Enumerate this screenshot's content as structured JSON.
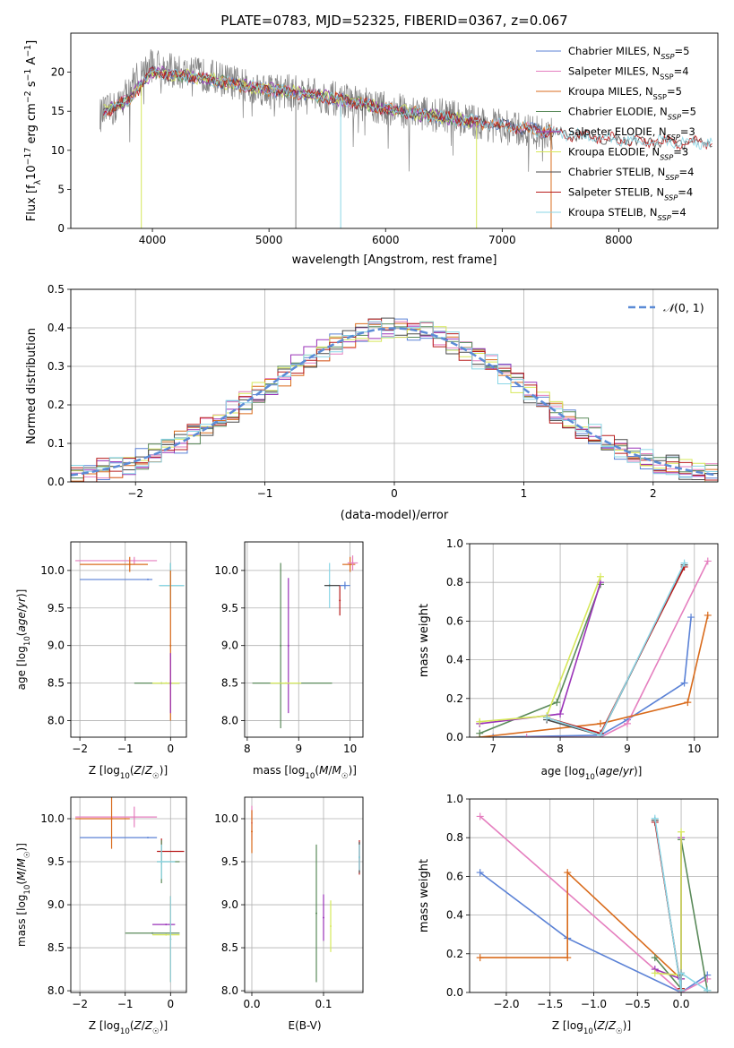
{
  "figure": {
    "title": "PLATE=0783, MJD=52325, FIBERID=0367, z=0.067"
  },
  "colors": {
    "data": "#808080",
    "chabrier_miles": "#5b82d6",
    "salpeter_miles": "#e57fbf",
    "kroupa_miles": "#d96b1c",
    "chabrier_elodie": "#5a8a5a",
    "salpeter_elodie": "#9a32b8",
    "kroupa_elodie": "#d6e85a",
    "chabrier_stelib": "#4a4a4a",
    "salpeter_stelib": "#b81c1c",
    "kroupa_stelib": "#8ad6e6",
    "gaussian": "#5b8bd6",
    "grid": "#b0b0b0"
  },
  "chart_data": [
    {
      "id": "spectrum",
      "type": "line",
      "title": "PLATE=0783, MJD=52325, FIBERID=0367, z=0.067",
      "xlabel": "wavelength [Angstrom, rest frame]",
      "ylabel": "Flux [f_λ 10^-17 erg cm^-2 s^-1 A^-1]",
      "xlim": [
        3300,
        8850
      ],
      "ylim": [
        0,
        25
      ],
      "xticks": [
        4000,
        5000,
        6000,
        7000,
        8000
      ],
      "yticks": [
        0,
        5,
        10,
        15,
        20
      ],
      "grid": false,
      "legend_position": "top-right",
      "data_anchors": [
        [
          3550,
          14.5
        ],
        [
          3700,
          15.5
        ],
        [
          3850,
          19
        ],
        [
          4000,
          21
        ],
        [
          4200,
          20
        ],
        [
          4500,
          19.5
        ],
        [
          4800,
          18.2
        ],
        [
          5000,
          17.8
        ],
        [
          5300,
          17.3
        ],
        [
          5600,
          16.5
        ],
        [
          6000,
          15.3
        ],
        [
          6300,
          14.8
        ],
        [
          6600,
          14.2
        ],
        [
          6800,
          13.5
        ],
        [
          7000,
          13
        ],
        [
          7200,
          12.5
        ],
        [
          7400,
          12
        ]
      ],
      "model_anchors": [
        [
          3600,
          15
        ],
        [
          3800,
          16.5
        ],
        [
          4000,
          20
        ],
        [
          4300,
          19.5
        ],
        [
          4700,
          18.5
        ],
        [
          5000,
          17.8
        ],
        [
          5500,
          16.8
        ],
        [
          6000,
          15.3
        ],
        [
          6500,
          14.2
        ],
        [
          7000,
          13.2
        ],
        [
          7500,
          12.2
        ],
        [
          8000,
          11.3
        ],
        [
          8500,
          11
        ],
        [
          8800,
          11
        ]
      ],
      "series": [
        {
          "name": "Chabrier MILES, N_SSP=5",
          "color": "#5b82d6",
          "xmax": 7450
        },
        {
          "name": "Salpeter MILES, N_SSP=4",
          "color": "#e57fbf",
          "xmax": 7450
        },
        {
          "name": "Kroupa MILES, N_SSP=5",
          "color": "#d96b1c",
          "xmax": 7450
        },
        {
          "name": "Chabrier ELODIE, N_SSP=5",
          "color": "#5a8a5a",
          "xmax": 6800
        },
        {
          "name": "Salpeter ELODIE, N_SSP=3",
          "color": "#9a32b8",
          "xmax": 6800
        },
        {
          "name": "Kroupa ELODIE, N_SSP=3",
          "color": "#d6e85a",
          "xmax": 6800
        },
        {
          "name": "Chabrier STELIB, N_SSP=4",
          "color": "#4a4a4a",
          "xmax": 8800
        },
        {
          "name": "Salpeter STELIB, N_SSP=4",
          "color": "#b81c1c",
          "xmax": 8800
        },
        {
          "name": "Kroupa STELIB, N_SSP=4",
          "color": "#8ad6e6",
          "xmax": 8800
        }
      ],
      "dips": [
        {
          "x": 3905,
          "y": 0,
          "color": "#d6e85a"
        },
        {
          "x": 5230,
          "y": 0,
          "color": "#808080"
        },
        {
          "x": 5615,
          "y": 0,
          "color": "#8ad6e6"
        },
        {
          "x": 6780,
          "y": 0,
          "color": "#d6e85a"
        },
        {
          "x": 7420,
          "y": 0,
          "color": "#d96b1c"
        }
      ]
    },
    {
      "id": "residuals",
      "type": "step",
      "xlabel": "(data-model)/error",
      "ylabel": "Normed distribution",
      "xlim": [
        -2.5,
        2.5
      ],
      "ylim": [
        0,
        0.5
      ],
      "xticks": [
        -2,
        -1,
        0,
        1,
        2
      ],
      "yticks": [
        0.0,
        0.1,
        0.2,
        0.3,
        0.4,
        0.5
      ],
      "grid": true,
      "legend_position": "top-right",
      "gaussian_label": "𝒩(0, 1)",
      "bin_width": 0.1
    },
    {
      "id": "age-vs-Z",
      "type": "errorbar",
      "xlabel": "Z [log10(Z/Z☉)]",
      "ylabel": "age [log10(age/yr)]",
      "xlim": [
        -2.2,
        0.35
      ],
      "ylim": [
        7.78,
        10.38
      ],
      "xticks": [
        -2,
        -1,
        0
      ],
      "yticks": [
        8.0,
        8.5,
        9.0,
        9.5,
        10.0
      ],
      "grid": true,
      "points": [
        {
          "x": -0.5,
          "y": 9.88,
          "xerr": [
            1.5,
            0.1
          ],
          "yerr": 0,
          "color": "#5b82d6"
        },
        {
          "x": -0.8,
          "y": 10.13,
          "xerr": [
            1.3,
            0.5
          ],
          "yerr": 0.05,
          "color": "#e57fbf"
        },
        {
          "x": -0.9,
          "y": 10.08,
          "xerr": [
            1.1,
            0.4
          ],
          "yerr": 0.1,
          "color": "#d96b1c"
        },
        {
          "x": 0.0,
          "y": 9.8,
          "xerr": [
            0.25,
            0.3
          ],
          "yerr": 0.3,
          "color": "#5a8a5a"
        },
        {
          "x": 0.0,
          "y": 9.8,
          "xerr": [
            0.25,
            0.3
          ],
          "yerr": 0.3,
          "color": "#8ad6e6"
        },
        {
          "x": 0.0,
          "y": 9.0,
          "xerr": [
            0,
            0
          ],
          "yerr": 1.0,
          "color": "#d96b1c"
        },
        {
          "x": -0.2,
          "y": 8.5,
          "xerr": [
            0.6,
            0.4
          ],
          "yerr": 0,
          "color": "#5a8a5a"
        },
        {
          "x": -0.1,
          "y": 8.5,
          "xerr": [
            0.3,
            0.3
          ],
          "yerr": 0,
          "color": "#d6e85a"
        },
        {
          "x": 0.0,
          "y": 8.5,
          "xerr": [
            0,
            0
          ],
          "yerr": 0.4,
          "color": "#9a32b8"
        }
      ]
    },
    {
      "id": "age-vs-mass",
      "type": "errorbar",
      "xlabel": "mass [log10(M/M☉)]",
      "xlim": [
        7.95,
        10.25
      ],
      "ylim": [
        7.78,
        10.38
      ],
      "xticks": [
        8,
        9,
        10
      ],
      "yticks": [
        8.0,
        8.5,
        9.0,
        9.5,
        10.0
      ],
      "grid": true,
      "points": [
        {
          "x": 8.65,
          "y": 8.5,
          "xerr": [
            0.55,
            1.0
          ],
          "yerr": 0,
          "color": "#5a8a5a"
        },
        {
          "x": 8.65,
          "y": 9.0,
          "xerr": [
            0,
            0
          ],
          "yerr": 1.1,
          "color": "#5a8a5a"
        },
        {
          "x": 8.8,
          "y": 9.0,
          "xerr": [
            0,
            0
          ],
          "yerr": 0.9,
          "color": "#9a32b8"
        },
        {
          "x": 8.75,
          "y": 8.5,
          "xerr": [
            0.3,
            0.3
          ],
          "yerr": 0,
          "color": "#d6e85a"
        },
        {
          "x": 9.6,
          "y": 9.8,
          "xerr": [
            0.1,
            0.3
          ],
          "yerr": 0.3,
          "color": "#8ad6e6"
        },
        {
          "x": 9.6,
          "y": 9.8,
          "xerr": [
            0.1,
            0.2
          ],
          "yerr": 0,
          "color": "#4a4a4a"
        },
        {
          "x": 9.8,
          "y": 9.6,
          "xerr": [
            0,
            0
          ],
          "yerr": 0.2,
          "color": "#b81c1c"
        },
        {
          "x": 10.0,
          "y": 10.08,
          "xerr": [
            0.15,
            0.1
          ],
          "yerr": 0.1,
          "color": "#d96b1c"
        },
        {
          "x": 10.05,
          "y": 10.1,
          "xerr": [
            0.1,
            0.1
          ],
          "yerr": 0.1,
          "color": "#e57fbf"
        },
        {
          "x": 9.9,
          "y": 9.8,
          "xerr": [
            0.1,
            0.1
          ],
          "yerr": 0.05,
          "color": "#5b82d6"
        }
      ]
    },
    {
      "id": "weight-vs-age",
      "type": "line",
      "xlabel": "age [log10(age/yr)]",
      "ylabel": "mass weight",
      "xlim": [
        6.65,
        10.35
      ],
      "ylim": [
        0,
        1.0
      ],
      "xticks": [
        7,
        8,
        9,
        10
      ],
      "yticks": [
        0.0,
        0.2,
        0.4,
        0.6,
        0.8,
        1.0
      ],
      "grid": true,
      "series": [
        {
          "color": "#5b82d6",
          "points": [
            [
              7.0,
              0.0
            ],
            [
              8.6,
              0.01
            ],
            [
              9.0,
              0.09
            ],
            [
              9.85,
              0.28
            ],
            [
              9.95,
              0.62
            ]
          ]
        },
        {
          "color": "#e57fbf",
          "points": [
            [
              7.5,
              0.0
            ],
            [
              8.6,
              0.0
            ],
            [
              9.0,
              0.07
            ],
            [
              10.2,
              0.91
            ]
          ]
        },
        {
          "color": "#d96b1c",
          "points": [
            [
              6.8,
              0.0
            ],
            [
              8.6,
              0.07
            ],
            [
              9.9,
              0.18
            ],
            [
              10.2,
              0.63
            ]
          ]
        },
        {
          "color": "#5a8a5a",
          "points": [
            [
              6.8,
              0.02
            ],
            [
              7.95,
              0.18
            ],
            [
              8.6,
              0.79
            ]
          ]
        },
        {
          "color": "#9a32b8",
          "points": [
            [
              6.8,
              0.07
            ],
            [
              8.0,
              0.12
            ],
            [
              8.6,
              0.8
            ]
          ]
        },
        {
          "color": "#d6e85a",
          "points": [
            [
              6.8,
              0.08
            ],
            [
              7.8,
              0.11
            ],
            [
              8.6,
              0.83
            ]
          ]
        },
        {
          "color": "#4a4a4a",
          "points": [
            [
              7.8,
              0.09
            ],
            [
              8.6,
              0.01
            ],
            [
              9.85,
              0.89
            ]
          ]
        },
        {
          "color": "#b81c1c",
          "points": [
            [
              7.8,
              0.1
            ],
            [
              8.6,
              0.02
            ],
            [
              9.85,
              0.88
            ]
          ]
        },
        {
          "color": "#8ad6e6",
          "points": [
            [
              7.8,
              0.1
            ],
            [
              8.6,
              0.01
            ],
            [
              9.85,
              0.9
            ]
          ]
        }
      ]
    },
    {
      "id": "mass-vs-Z",
      "type": "errorbar",
      "xlabel": "Z [log10(Z/Z☉)]",
      "ylabel": "mass [log10(M/M☉)]",
      "xlim": [
        -2.2,
        0.35
      ],
      "ylim": [
        7.98,
        10.25
      ],
      "xticks": [
        -2,
        -1,
        0
      ],
      "yticks": [
        8.0,
        8.5,
        9.0,
        9.5,
        10.0
      ],
      "grid": true,
      "points": [
        {
          "x": -0.5,
          "y": 9.78,
          "xerr": [
            1.5,
            0.2
          ],
          "yerr": 0,
          "color": "#5b82d6"
        },
        {
          "x": -0.8,
          "y": 10.02,
          "xerr": [
            1.3,
            0.5
          ],
          "yerr": 0.12,
          "color": "#e57fbf"
        },
        {
          "x": -1.3,
          "y": 10.0,
          "xerr": [
            0.8,
            0.4
          ],
          "yerr": 0.35,
          "color": "#d96b1c"
        },
        {
          "x": -0.2,
          "y": 9.62,
          "xerr": [
            0.1,
            0.5
          ],
          "yerr": 0.15,
          "color": "#b81c1c"
        },
        {
          "x": -0.2,
          "y": 9.5,
          "xerr": [
            0.1,
            0.4
          ],
          "yerr": 0.25,
          "color": "#5a8a5a"
        },
        {
          "x": -0.2,
          "y": 9.5,
          "xerr": [
            0.1,
            0.3
          ],
          "yerr": 0.2,
          "color": "#8ad6e6"
        },
        {
          "x": 0.0,
          "y": 8.6,
          "xerr": [
            0,
            0
          ],
          "yerr": 0.5,
          "color": "#d96b1c"
        },
        {
          "x": -0.1,
          "y": 8.77,
          "xerr": [
            0.3,
            0.2
          ],
          "yerr": 0,
          "color": "#9a32b8"
        },
        {
          "x": -0.4,
          "y": 8.67,
          "xerr": [
            0.6,
            0.6
          ],
          "yerr": 0,
          "color": "#5a8a5a"
        },
        {
          "x": -0.1,
          "y": 8.65,
          "xerr": [
            0.3,
            0.3
          ],
          "yerr": 0,
          "color": "#d6e85a"
        },
        {
          "x": 0.0,
          "y": 8.6,
          "xerr": [
            0,
            0
          ],
          "yerr": 0.5,
          "color": "#8ad6e6"
        }
      ]
    },
    {
      "id": "mass-vs-EBV",
      "type": "errorbar",
      "xlabel": "E(B-V)",
      "xlim": [
        -0.01,
        0.155
      ],
      "ylim": [
        7.98,
        10.25
      ],
      "xticks": [
        0.0,
        0.1
      ],
      "yticks": [
        8.0,
        8.5,
        9.0,
        9.5,
        10.0
      ],
      "grid": true,
      "points": [
        {
          "x": 0.0,
          "y": 9.95,
          "xerr": [
            0,
            0
          ],
          "yerr": 0.2,
          "color": "#e57fbf"
        },
        {
          "x": 0.0,
          "y": 9.85,
          "xerr": [
            0,
            0
          ],
          "yerr": 0.25,
          "color": "#d96b1c"
        },
        {
          "x": 0.09,
          "y": 8.9,
          "xerr": [
            0,
            0
          ],
          "yerr": 0.8,
          "color": "#5a8a5a"
        },
        {
          "x": 0.1,
          "y": 8.85,
          "xerr": [
            0,
            0
          ],
          "yerr": 0.27,
          "color": "#9a32b8"
        },
        {
          "x": 0.11,
          "y": 8.75,
          "xerr": [
            0,
            0
          ],
          "yerr": 0.3,
          "color": "#d6e85a"
        },
        {
          "x": 0.15,
          "y": 9.55,
          "xerr": [
            0,
            0
          ],
          "yerr": 0.2,
          "color": "#b81c1c"
        },
        {
          "x": 0.15,
          "y": 9.55,
          "xerr": [
            0,
            0
          ],
          "yerr": 0.18,
          "color": "#4a4a4a"
        },
        {
          "x": 0.15,
          "y": 9.55,
          "xerr": [
            0,
            0
          ],
          "yerr": 0.15,
          "color": "#8ad6e6"
        }
      ]
    },
    {
      "id": "weight-vs-Z",
      "type": "line",
      "xlabel": "Z [log10(Z/Z☉)]",
      "ylabel": "mass weight",
      "xlim": [
        -2.42,
        0.42
      ],
      "ylim": [
        0,
        1.0
      ],
      "xticks": [
        -2.0,
        -1.5,
        -1.0,
        -0.5,
        0.0
      ],
      "yticks": [
        0.0,
        0.2,
        0.4,
        0.6,
        0.8,
        1.0
      ],
      "grid": true,
      "series": [
        {
          "color": "#5b82d6",
          "points": [
            [
              -2.3,
              0.62
            ],
            [
              -1.3,
              0.28
            ],
            [
              0.0,
              0.0
            ],
            [
              0.3,
              0.09
            ]
          ]
        },
        {
          "color": "#e57fbf",
          "points": [
            [
              -2.3,
              0.91
            ],
            [
              0.0,
              0.0
            ],
            [
              0.3,
              0.07
            ]
          ]
        },
        {
          "color": "#d96b1c",
          "points": [
            [
              -2.3,
              0.18
            ],
            [
              -1.3,
              0.18
            ],
            [
              -1.3,
              0.62
            ],
            [
              0.0,
              0.07
            ]
          ]
        },
        {
          "color": "#5a8a5a",
          "points": [
            [
              -0.3,
              0.18
            ],
            [
              0.0,
              0.02
            ],
            [
              0.0,
              0.79
            ],
            [
              0.3,
              0.01
            ]
          ]
        },
        {
          "color": "#9a32b8",
          "points": [
            [
              -0.3,
              0.12
            ],
            [
              0.0,
              0.07
            ],
            [
              0.0,
              0.8
            ]
          ]
        },
        {
          "color": "#d6e85a",
          "points": [
            [
              -0.3,
              0.1
            ],
            [
              0.0,
              0.09
            ],
            [
              0.0,
              0.83
            ]
          ]
        },
        {
          "color": "#4a4a4a",
          "points": [
            [
              -0.3,
              0.89
            ],
            [
              0.0,
              0.01
            ],
            [
              0.0,
              0.09
            ]
          ]
        },
        {
          "color": "#b81c1c",
          "points": [
            [
              -0.3,
              0.88
            ],
            [
              0.0,
              0.02
            ],
            [
              0.0,
              0.1
            ]
          ]
        },
        {
          "color": "#8ad6e6",
          "points": [
            [
              -0.3,
              0.9
            ],
            [
              0.0,
              0.01
            ],
            [
              0.0,
              0.1
            ],
            [
              0.3,
              0.01
            ]
          ]
        }
      ]
    }
  ]
}
